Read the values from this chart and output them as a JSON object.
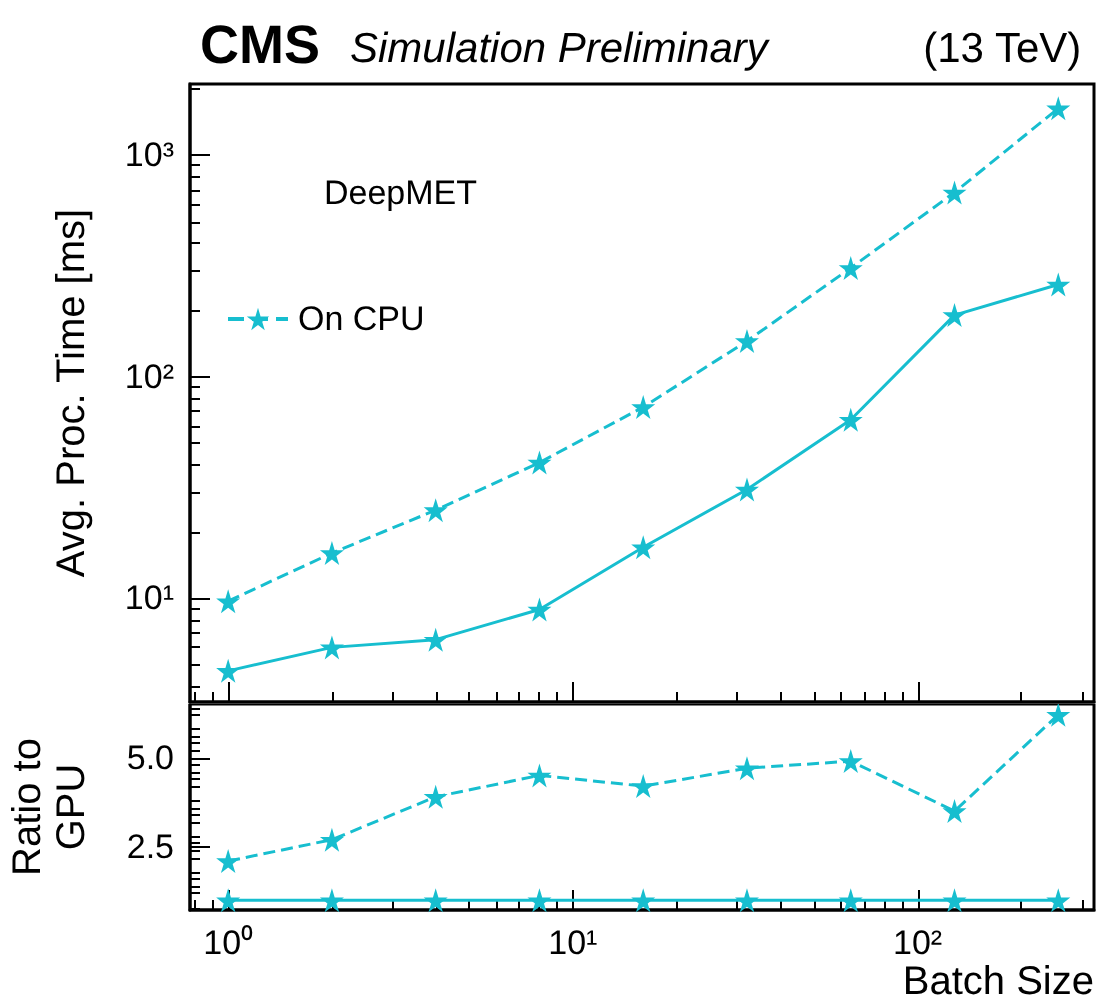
{
  "chart_data": [
    {
      "type": "line",
      "title": "CMS",
      "subtitle": "Simulation Preliminary",
      "annotations": [
        "(13 TeV)"
      ],
      "ylabel": "Avg. Proc. Time [ms]",
      "legend_title": "DeepMET",
      "legend": "top left",
      "log": "xy",
      "marker": "star",
      "tick_labels": "y",
      "x": [
        1,
        2,
        4,
        8,
        16,
        32,
        64,
        128,
        256
      ],
      "xlim": [
        0.775,
        325
      ],
      "xticks": [
        {
          "value": 1,
          "label": null
        },
        {
          "value": 10,
          "label": null
        },
        {
          "value": 100,
          "label": null
        }
      ],
      "ylim": [
        3.4,
        2100
      ],
      "yticks": [
        {
          "value": 10,
          "label": "10¹"
        },
        {
          "value": 100,
          "label": "10²"
        },
        {
          "value": 1000,
          "label": "10³"
        }
      ],
      "series": [
        {
          "color": "#17becf",
          "line_style": "solid",
          "values": [
            4.7,
            6.0,
            6.5,
            8.9,
            17,
            31,
            64,
            190,
            261
          ]
        },
        {
          "name": "On CPU",
          "color": "#17becf",
          "line_style": "dashed",
          "values": [
            9.7,
            16,
            25,
            41,
            73,
            145,
            310,
            680,
            1630
          ]
        }
      ]
    },
    {
      "type": "line",
      "ylabel": "Ratio to GPU",
      "xlabel": "Batch Size",
      "log": "x",
      "marker": "star",
      "x": [
        1,
        2,
        4,
        8,
        16,
        32,
        64,
        128,
        256
      ],
      "xlim": [
        0.775,
        325
      ],
      "xticks": [
        {
          "value": 1,
          "label": "10⁰"
        },
        {
          "value": 10,
          "label": "10¹"
        },
        {
          "value": 100,
          "label": "10²"
        }
      ],
      "ylim": [
        0.73,
        6.5
      ],
      "yticks": [
        2.5,
        {
          "value": 5,
          "label": "5.0"
        }
      ],
      "series": [
        {
          "color": "#17becf",
          "line_style": "solid",
          "values": [
            1,
            1,
            1,
            1,
            1,
            1,
            1,
            1,
            1
          ]
        },
        {
          "color": "#17becf",
          "line_style": "dashed",
          "values": [
            2.1,
            2.7,
            3.9,
            4.5,
            4.2,
            4.7,
            4.9,
            3.5,
            6.2
          ]
        }
      ]
    }
  ]
}
